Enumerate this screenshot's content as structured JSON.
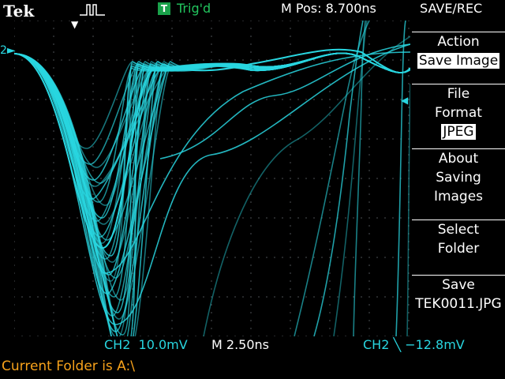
{
  "header": {
    "brand": "Tek",
    "acquisition_icon": "square-pulse-icon",
    "trigger_badge": "T",
    "trigger_status": "Trig'd",
    "horizontal_position": "M Pos: 8.700ns",
    "menu_title": "SAVE/REC"
  },
  "markers": {
    "channel_marker": "2",
    "trigger_position_icon": "down-arrow-icon",
    "trigger_level_icon": "left-arrow-icon"
  },
  "side_menu": {
    "action": {
      "label": "Action",
      "value": "Save Image"
    },
    "file_format": {
      "label_line1": "File",
      "label_line2": "Format",
      "value": "JPEG"
    },
    "about": {
      "line1": "About",
      "line2": "Saving",
      "line3": "Images"
    },
    "select_folder": {
      "line1": "Select",
      "line2": "Folder"
    },
    "save": {
      "line1": "Save",
      "line2": "TEK0011.JPG"
    }
  },
  "readouts": {
    "channel_scale": "CH2  10.0mV",
    "time_scale": "M 2.50ns",
    "trigger": "CH2 ╲ −12.8mV"
  },
  "status": {
    "folder": "Current Folder is A:\\"
  },
  "colors": {
    "trace": "#29d6e0",
    "trig_ok": "#22c55e",
    "folder_text": "#f7a21b",
    "background": "#000000",
    "grid_dots": "#9aa0a6"
  }
}
